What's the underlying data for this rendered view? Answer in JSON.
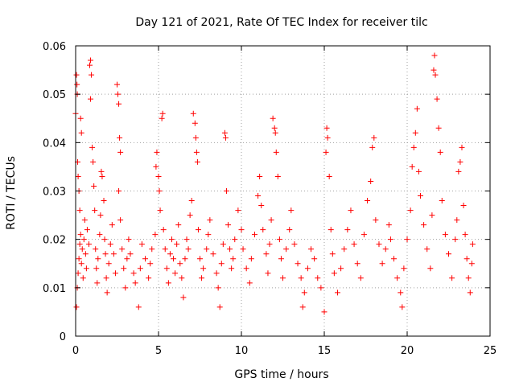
{
  "chart_data": {
    "type": "scatter",
    "title": "Day 121 of 2021, Rate Of TEC Index for receiver tilc",
    "xlabel": "GPS time / hours",
    "ylabel": "ROTI / TECUs",
    "xlim": [
      0,
      25
    ],
    "ylim": [
      0,
      0.06
    ],
    "x_ticks": [
      "0",
      "5",
      "10",
      "15",
      "20",
      "25"
    ],
    "y_ticks": [
      "0",
      "0.01",
      "0.02",
      "0.03",
      "0.04",
      "0.05",
      "0.06"
    ],
    "grid": true,
    "legend": "none",
    "marker": "+",
    "color": "#ff0000",
    "points": [
      [
        0.0,
        0.046
      ],
      [
        0.05,
        0.054
      ],
      [
        0.08,
        0.052
      ],
      [
        0.1,
        0.05
      ],
      [
        0.12,
        0.036
      ],
      [
        0.15,
        0.033
      ],
      [
        0.2,
        0.03
      ],
      [
        0.25,
        0.026
      ],
      [
        0.3,
        0.045
      ],
      [
        0.35,
        0.042
      ],
      [
        0.05,
        0.006
      ],
      [
        0.1,
        0.01
      ],
      [
        0.15,
        0.013
      ],
      [
        0.2,
        0.016
      ],
      [
        0.25,
        0.019
      ],
      [
        0.3,
        0.021
      ],
      [
        0.35,
        0.015
      ],
      [
        0.4,
        0.018
      ],
      [
        0.45,
        0.012
      ],
      [
        0.5,
        0.02
      ],
      [
        0.55,
        0.024
      ],
      [
        0.6,
        0.017
      ],
      [
        0.65,
        0.014
      ],
      [
        0.7,
        0.022
      ],
      [
        0.8,
        0.019
      ],
      [
        0.85,
        0.056
      ],
      [
        0.9,
        0.057
      ],
      [
        0.95,
        0.054
      ],
      [
        0.9,
        0.049
      ],
      [
        1.0,
        0.039
      ],
      [
        1.05,
        0.036
      ],
      [
        1.1,
        0.031
      ],
      [
        1.15,
        0.026
      ],
      [
        1.2,
        0.018
      ],
      [
        1.25,
        0.014
      ],
      [
        1.3,
        0.011
      ],
      [
        1.35,
        0.016
      ],
      [
        1.45,
        0.021
      ],
      [
        1.5,
        0.025
      ],
      [
        1.55,
        0.034
      ],
      [
        1.6,
        0.033
      ],
      [
        1.7,
        0.028
      ],
      [
        1.75,
        0.02
      ],
      [
        1.8,
        0.017
      ],
      [
        1.85,
        0.012
      ],
      [
        1.9,
        0.009
      ],
      [
        2.0,
        0.015
      ],
      [
        2.1,
        0.019
      ],
      [
        2.2,
        0.023
      ],
      [
        2.3,
        0.017
      ],
      [
        2.4,
        0.013
      ],
      [
        2.5,
        0.052
      ],
      [
        2.55,
        0.05
      ],
      [
        2.6,
        0.048
      ],
      [
        2.65,
        0.041
      ],
      [
        2.7,
        0.038
      ],
      [
        2.6,
        0.03
      ],
      [
        2.7,
        0.024
      ],
      [
        2.8,
        0.018
      ],
      [
        2.9,
        0.014
      ],
      [
        3.0,
        0.01
      ],
      [
        3.1,
        0.016
      ],
      [
        3.2,
        0.02
      ],
      [
        3.3,
        0.017
      ],
      [
        3.5,
        0.013
      ],
      [
        3.6,
        0.011
      ],
      [
        3.8,
        0.006
      ],
      [
        3.9,
        0.014
      ],
      [
        4.0,
        0.019
      ],
      [
        4.2,
        0.016
      ],
      [
        4.4,
        0.012
      ],
      [
        4.5,
        0.015
      ],
      [
        4.6,
        0.018
      ],
      [
        4.8,
        0.021
      ],
      [
        4.85,
        0.035
      ],
      [
        4.9,
        0.038
      ],
      [
        5.0,
        0.033
      ],
      [
        5.05,
        0.03
      ],
      [
        5.1,
        0.026
      ],
      [
        5.2,
        0.045
      ],
      [
        5.25,
        0.046
      ],
      [
        5.3,
        0.022
      ],
      [
        5.4,
        0.018
      ],
      [
        5.5,
        0.014
      ],
      [
        5.6,
        0.011
      ],
      [
        5.7,
        0.017
      ],
      [
        5.8,
        0.02
      ],
      [
        5.9,
        0.016
      ],
      [
        6.0,
        0.013
      ],
      [
        6.1,
        0.019
      ],
      [
        6.2,
        0.023
      ],
      [
        6.3,
        0.015
      ],
      [
        6.4,
        0.012
      ],
      [
        6.5,
        0.008
      ],
      [
        6.6,
        0.016
      ],
      [
        6.7,
        0.02
      ],
      [
        6.8,
        0.018
      ],
      [
        6.9,
        0.025
      ],
      [
        7.0,
        0.028
      ],
      [
        7.1,
        0.046
      ],
      [
        7.2,
        0.044
      ],
      [
        7.25,
        0.041
      ],
      [
        7.3,
        0.038
      ],
      [
        7.35,
        0.036
      ],
      [
        7.4,
        0.022
      ],
      [
        7.5,
        0.016
      ],
      [
        7.6,
        0.012
      ],
      [
        7.7,
        0.014
      ],
      [
        7.9,
        0.018
      ],
      [
        8.0,
        0.021
      ],
      [
        8.1,
        0.024
      ],
      [
        8.3,
        0.017
      ],
      [
        8.5,
        0.013
      ],
      [
        8.6,
        0.01
      ],
      [
        8.7,
        0.006
      ],
      [
        8.8,
        0.015
      ],
      [
        8.9,
        0.019
      ],
      [
        9.0,
        0.042
      ],
      [
        9.05,
        0.041
      ],
      [
        9.1,
        0.03
      ],
      [
        9.2,
        0.023
      ],
      [
        9.3,
        0.018
      ],
      [
        9.4,
        0.014
      ],
      [
        9.5,
        0.016
      ],
      [
        9.6,
        0.02
      ],
      [
        9.8,
        0.026
      ],
      [
        10.0,
        0.022
      ],
      [
        10.1,
        0.018
      ],
      [
        10.3,
        0.014
      ],
      [
        10.5,
        0.011
      ],
      [
        10.6,
        0.016
      ],
      [
        10.8,
        0.021
      ],
      [
        11.0,
        0.029
      ],
      [
        11.1,
        0.033
      ],
      [
        11.2,
        0.027
      ],
      [
        11.3,
        0.022
      ],
      [
        11.5,
        0.017
      ],
      [
        11.6,
        0.013
      ],
      [
        11.7,
        0.019
      ],
      [
        11.8,
        0.024
      ],
      [
        11.9,
        0.045
      ],
      [
        12.0,
        0.043
      ],
      [
        12.05,
        0.042
      ],
      [
        12.1,
        0.038
      ],
      [
        12.2,
        0.033
      ],
      [
        12.3,
        0.02
      ],
      [
        12.4,
        0.016
      ],
      [
        12.5,
        0.012
      ],
      [
        12.7,
        0.018
      ],
      [
        12.9,
        0.022
      ],
      [
        13.0,
        0.026
      ],
      [
        13.2,
        0.019
      ],
      [
        13.4,
        0.015
      ],
      [
        13.6,
        0.012
      ],
      [
        13.7,
        0.006
      ],
      [
        13.8,
        0.009
      ],
      [
        14.0,
        0.014
      ],
      [
        14.2,
        0.018
      ],
      [
        14.4,
        0.016
      ],
      [
        14.6,
        0.012
      ],
      [
        14.8,
        0.01
      ],
      [
        15.0,
        0.005
      ],
      [
        15.1,
        0.038
      ],
      [
        15.15,
        0.043
      ],
      [
        15.2,
        0.041
      ],
      [
        15.3,
        0.033
      ],
      [
        15.4,
        0.022
      ],
      [
        15.5,
        0.017
      ],
      [
        15.6,
        0.013
      ],
      [
        15.8,
        0.009
      ],
      [
        16.0,
        0.014
      ],
      [
        16.2,
        0.018
      ],
      [
        16.4,
        0.022
      ],
      [
        16.6,
        0.026
      ],
      [
        16.8,
        0.019
      ],
      [
        17.0,
        0.015
      ],
      [
        17.2,
        0.012
      ],
      [
        17.4,
        0.021
      ],
      [
        17.6,
        0.028
      ],
      [
        17.8,
        0.032
      ],
      [
        17.9,
        0.039
      ],
      [
        18.0,
        0.041
      ],
      [
        18.1,
        0.024
      ],
      [
        18.3,
        0.019
      ],
      [
        18.5,
        0.015
      ],
      [
        18.7,
        0.018
      ],
      [
        18.9,
        0.023
      ],
      [
        19.0,
        0.02
      ],
      [
        19.2,
        0.016
      ],
      [
        19.4,
        0.012
      ],
      [
        19.6,
        0.009
      ],
      [
        19.7,
        0.006
      ],
      [
        19.8,
        0.014
      ],
      [
        20.0,
        0.02
      ],
      [
        20.2,
        0.026
      ],
      [
        20.3,
        0.035
      ],
      [
        20.4,
        0.039
      ],
      [
        20.5,
        0.042
      ],
      [
        20.6,
        0.047
      ],
      [
        20.7,
        0.034
      ],
      [
        20.8,
        0.029
      ],
      [
        21.0,
        0.023
      ],
      [
        21.2,
        0.018
      ],
      [
        21.4,
        0.014
      ],
      [
        21.5,
        0.025
      ],
      [
        21.6,
        0.055
      ],
      [
        21.65,
        0.058
      ],
      [
        21.7,
        0.054
      ],
      [
        21.8,
        0.049
      ],
      [
        21.9,
        0.043
      ],
      [
        22.0,
        0.038
      ],
      [
        22.1,
        0.028
      ],
      [
        22.3,
        0.021
      ],
      [
        22.5,
        0.017
      ],
      [
        22.7,
        0.012
      ],
      [
        22.9,
        0.02
      ],
      [
        23.0,
        0.024
      ],
      [
        23.1,
        0.034
      ],
      [
        23.2,
        0.036
      ],
      [
        23.3,
        0.039
      ],
      [
        23.4,
        0.027
      ],
      [
        23.5,
        0.021
      ],
      [
        23.6,
        0.016
      ],
      [
        23.7,
        0.012
      ],
      [
        23.8,
        0.009
      ],
      [
        23.9,
        0.015
      ],
      [
        23.95,
        0.019
      ]
    ]
  }
}
